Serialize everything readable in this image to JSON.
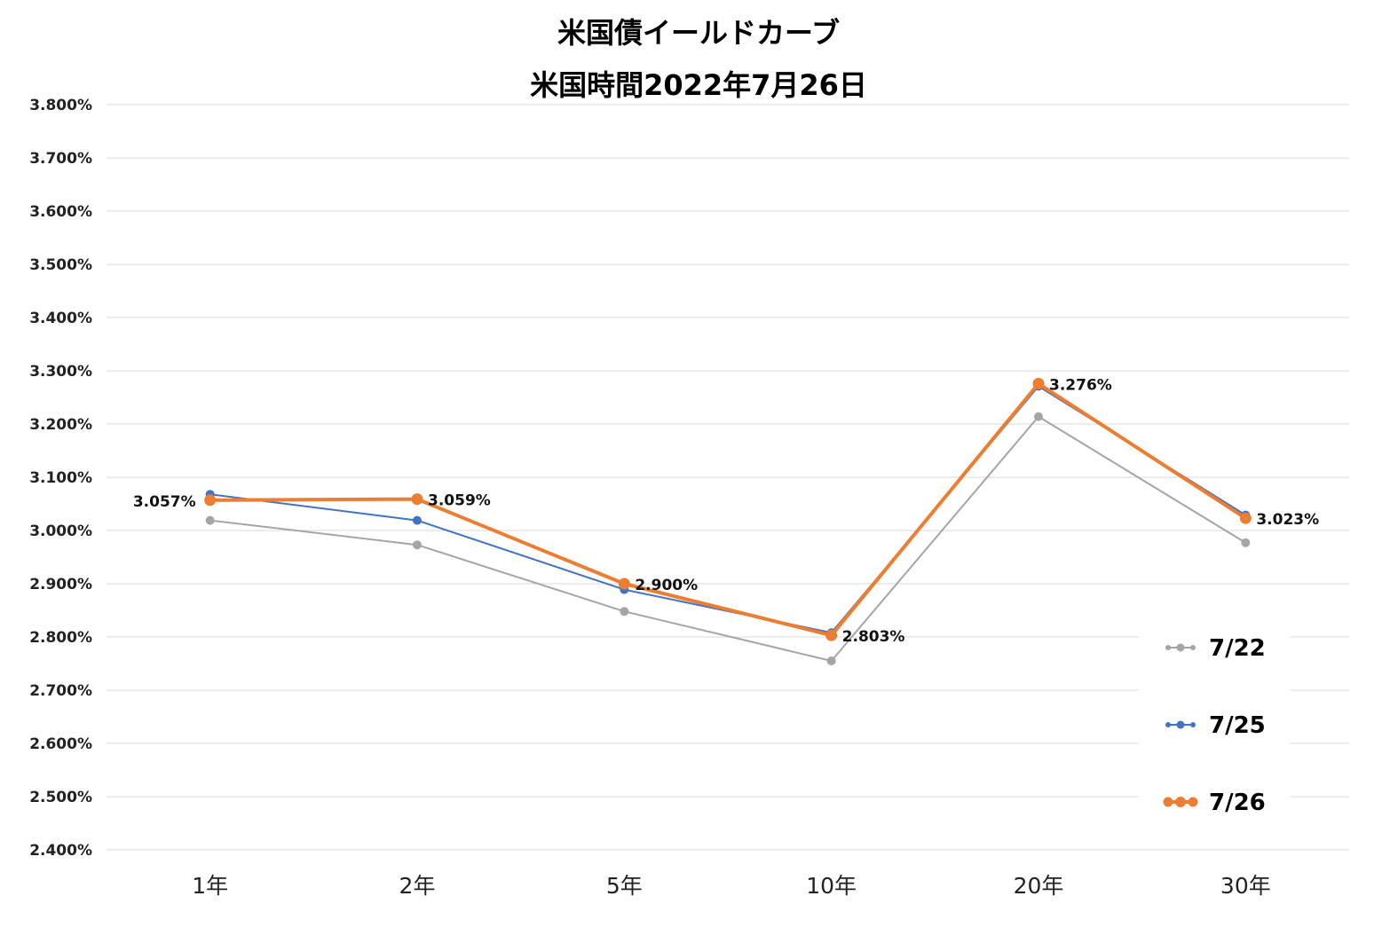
{
  "chart_data": {
    "type": "line",
    "title": "米国債イールドカーブ",
    "subtitle": "米国時間2022年7月26日",
    "categories": [
      "1年",
      "2年",
      "5年",
      "10年",
      "20年",
      "30年"
    ],
    "ylim": [
      2.4,
      3.8
    ],
    "ytick_values": [
      3.8,
      3.7,
      3.6,
      3.5,
      3.4,
      3.3,
      3.2,
      3.1,
      3.0,
      2.9,
      2.8,
      2.7,
      2.6,
      2.5,
      2.4
    ],
    "ytick_labels": [
      "3.800%",
      "3.700%",
      "3.600%",
      "3.500%",
      "3.400%",
      "3.300%",
      "3.200%",
      "3.100%",
      "3.000%",
      "2.900%",
      "2.800%",
      "2.700%",
      "2.600%",
      "2.500%",
      "2.400%"
    ],
    "grid": true,
    "legend_position": "right",
    "series": [
      {
        "name": "7/22",
        "color": "#a5a5a5",
        "values": [
          3.019,
          2.973,
          2.848,
          2.755,
          3.214,
          2.977
        ]
      },
      {
        "name": "7/25",
        "color": "#4472c4",
        "values": [
          3.068,
          3.019,
          2.889,
          2.808,
          3.271,
          3.029
        ]
      },
      {
        "name": "7/26",
        "color": "#ed7d31",
        "values": [
          3.057,
          3.059,
          2.9,
          2.803,
          3.276,
          3.023
        ],
        "data_labels": [
          "3.057%",
          "3.059%",
          "2.900%",
          "2.803%",
          "3.276%",
          "3.023%"
        ]
      }
    ]
  }
}
